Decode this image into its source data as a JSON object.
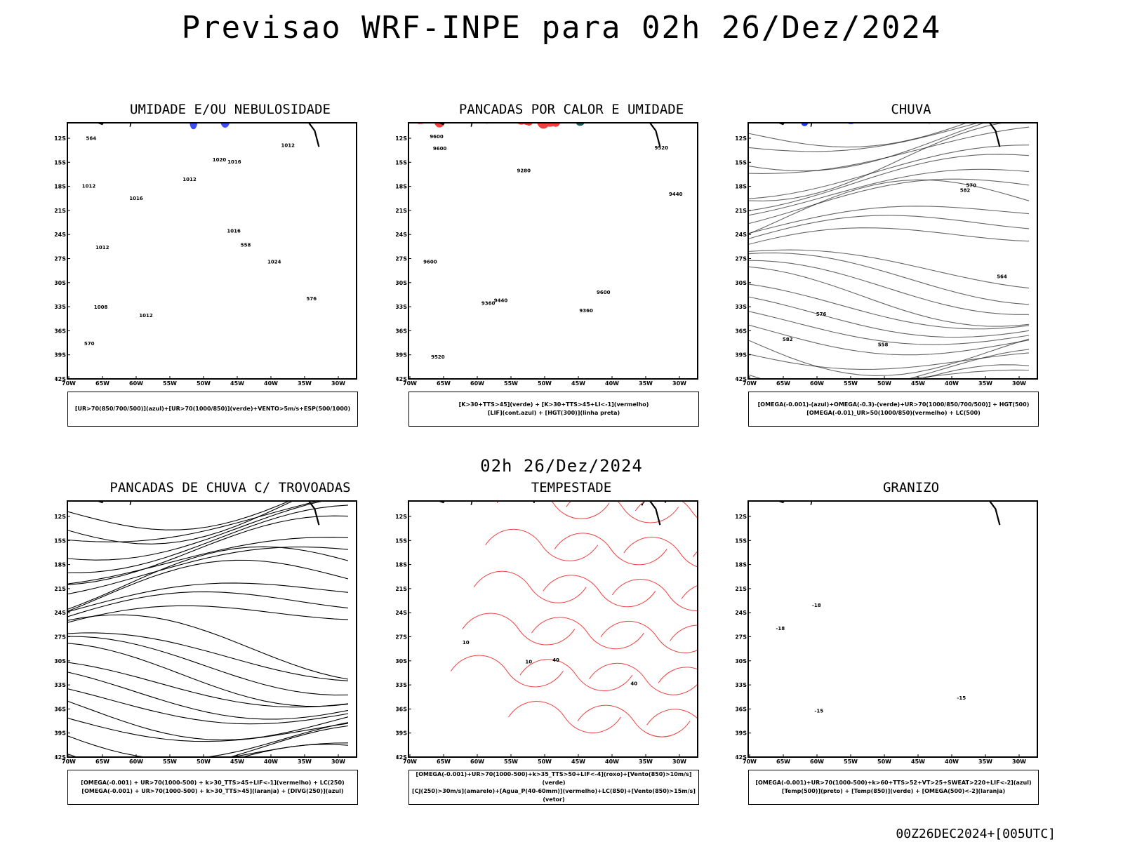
{
  "header": {
    "title": "Previsao WRF-INPE  para 02h 26/Dez/2024"
  },
  "mid_title": "02h 26/Dez/2024",
  "footer": {
    "stamp": "00Z26DEC2024+[005UTC]"
  },
  "axes": {
    "lat_labels": [
      "12S",
      "15S",
      "18S",
      "21S",
      "24S",
      "27S",
      "30S",
      "33S",
      "36S",
      "39S",
      "42S"
    ],
    "lon_labels": [
      "70W",
      "65W",
      "60W",
      "55W",
      "50W",
      "45W",
      "40W",
      "35W",
      "30W"
    ]
  },
  "colors": {
    "blue": "#2a3cf0",
    "light_blue": "#a8aef0",
    "green": "#00c800",
    "red": "#f04040",
    "dark_teal": "#1c5b58",
    "orange": "#f08a20",
    "yellow": "#e6dc3c",
    "black": "#000000"
  },
  "panels": [
    {
      "id": "umidade",
      "title": "UMIDADE E/OU NEBULOSIDADE",
      "legend": [
        "[UR>70(850/700/500)](azul)+[UR>70(1000/850)](verde)+VENTO>5m/s+ESP(500/1000)"
      ],
      "contour_labels": [
        "1012",
        "1012",
        "1012",
        "1012",
        "1016",
        "1008",
        "1012",
        "1016",
        "1016",
        "1020",
        "1024",
        "570",
        "576",
        "564",
        "558"
      ]
    },
    {
      "id": "pancadas_calor",
      "title": "PANCADAS POR CALOR E UMIDADE",
      "legend": [
        "[K>30+TTS>45](verde) + [K>30+TTS>45+LI<-1](vermelho)",
        "[LIF](cont.azul) + [HGT(300)](linha preta)"
      ],
      "contour_labels": [
        "9600",
        "9600",
        "9600",
        "9520",
        "9440",
        "9360",
        "9280",
        "9440",
        "9520",
        "9600",
        "9360"
      ]
    },
    {
      "id": "chuva",
      "title": "CHUVA",
      "legend": [
        "[OMEGA(-0.001)-(azul)+OMEGA(-0.3)-(verde)+UR>70(1000/850/700/500)] + HGT(500)",
        "[OMEGA(-0.01)_UR>50(1000/850)(vermelho) + LC(500)"
      ],
      "contour_labels": [
        "582",
        "570",
        "564",
        "558",
        "582",
        "576"
      ]
    },
    {
      "id": "trovoadas",
      "title": "PANCADAS DE CHUVA C/ TROVOADAS",
      "legend": [
        "[OMEGA(-0.001) + UR>70(1000-500) + k>30_TTS>45+LIF<-1](vermelho) + LC(250)",
        "[OMEGA(-0.001) + UR>70(1000-500) + k>30_TTS>45](laranja) + [DIVG(250)](azul)"
      ],
      "contour_labels": []
    },
    {
      "id": "tempestade",
      "title": "TEMPESTADE",
      "legend": [
        "[OMEGA(-0.001)+UR>70(1000-500)+k>35_TTS>50+LIF<-4](roxo)+[Vento(850)>10m/s](verde)",
        "[CJ(250)>30m/s](amarelo)+[Agua_P(40-60mm)](vermelho)+LC(850)+[Vento(850)>15m/s](vetor)"
      ],
      "contour_labels": [
        "10",
        "10",
        "40",
        "40"
      ]
    },
    {
      "id": "granizo",
      "title": "GRANIZO",
      "legend": [
        "[OMEGA(-0.001)+UR>70(1000-500)+k>60+TTS>52+VT>25+SWEAT>220+LIF<-2](azul)",
        "[Temp(500)](preto) + [Temp(850)](verde) + [OMEGA(500)<-2](laranja)"
      ],
      "contour_labels": [
        "-18",
        "-15",
        "-15",
        "-18"
      ]
    }
  ]
}
